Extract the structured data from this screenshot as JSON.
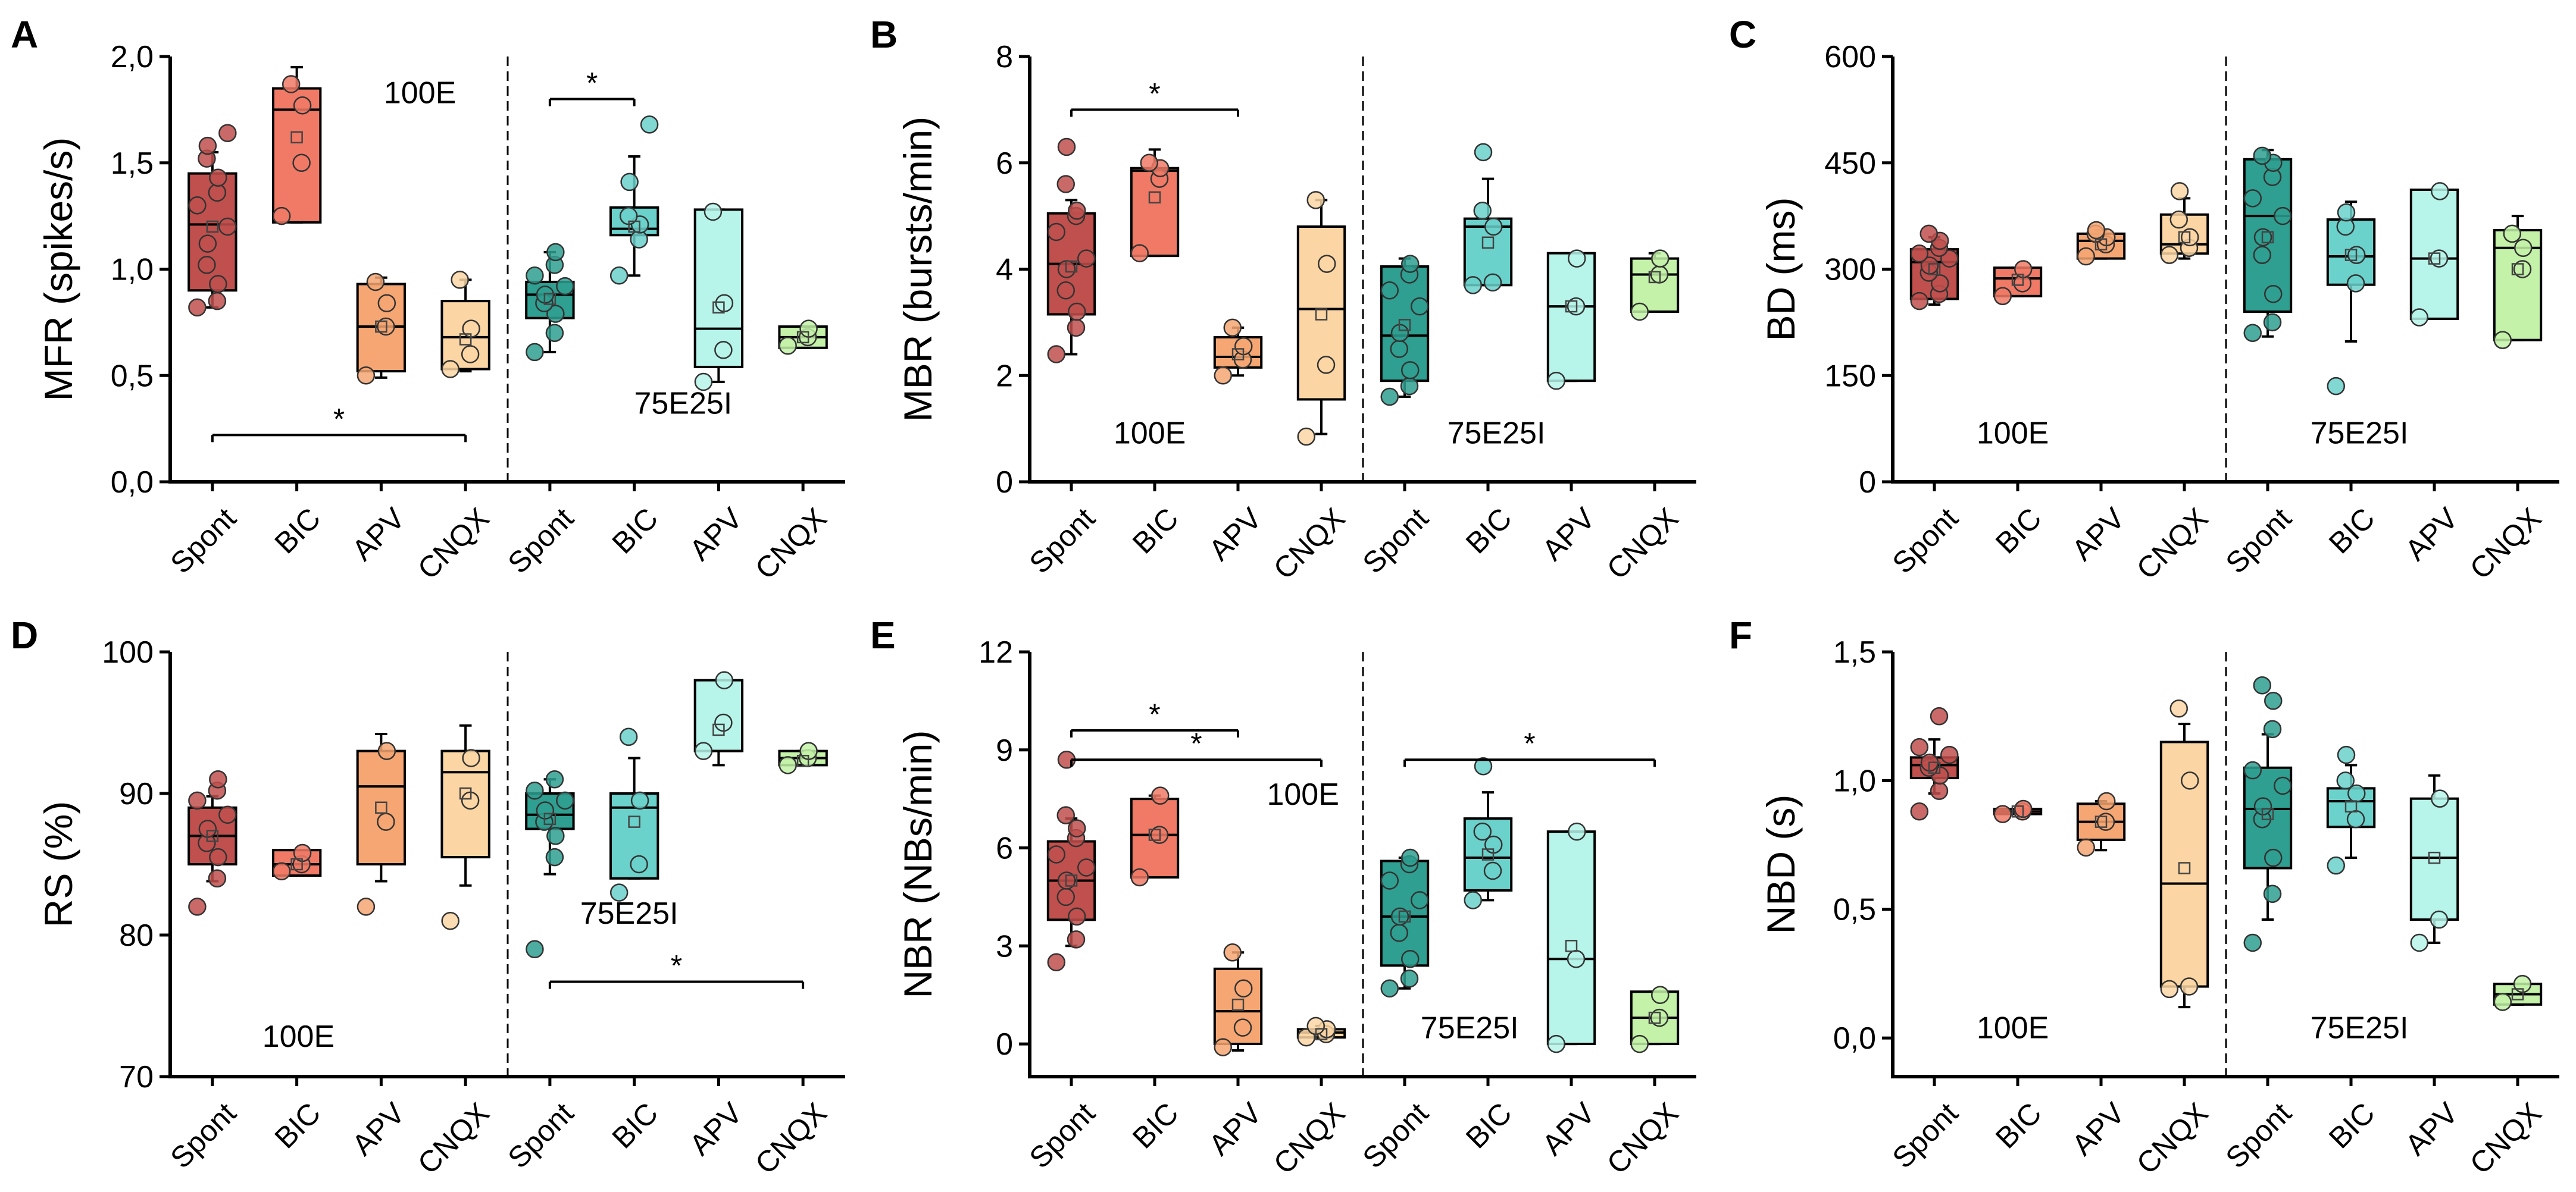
{
  "colors": {
    "Spont_100E": "#c0504d",
    "BIC_100E": "#f07a66",
    "APV_100E": "#f5a672",
    "CNQX_100E": "#fbd6a4",
    "Spont_75E25I": "#2e9f90",
    "BIC_75E25I": "#6bd1cb",
    "APV_75E25I": "#b7f4ea",
    "CNQX_75E25I": "#c3f2a8"
  },
  "chart_data": [
    {
      "panel": "A",
      "type": "box",
      "ylabel": "MFR (spikes/s)",
      "ylim": [
        0,
        2.0
      ],
      "yticks": [
        "0,0",
        "0,5",
        "1,0",
        "1,5",
        "2,0"
      ],
      "categories": [
        "Spont",
        "BIC",
        "APV",
        "CNQX",
        "Spont",
        "BIC",
        "APV",
        "CNQX"
      ],
      "group_labels": [
        "100E",
        "75E25I"
      ],
      "boxes": [
        {
          "q1": 0.9,
          "median": 1.21,
          "q3": 1.45,
          "mean": 1.2,
          "lo": 0.82,
          "hi": 1.55,
          "pts": [
            0.82,
            0.85,
            0.93,
            1.02,
            1.12,
            1.2,
            1.3,
            1.36,
            1.43,
            1.52,
            1.58,
            1.64
          ]
        },
        {
          "q1": 1.22,
          "median": 1.75,
          "q3": 1.85,
          "mean": 1.62,
          "lo": 1.22,
          "hi": 1.95,
          "pts": [
            1.25,
            1.5,
            1.77,
            1.87
          ]
        },
        {
          "q1": 0.52,
          "median": 0.73,
          "q3": 0.93,
          "mean": 0.73,
          "lo": 0.49,
          "hi": 0.96,
          "pts": [
            0.5,
            0.73,
            0.84,
            0.94
          ]
        },
        {
          "q1": 0.53,
          "median": 0.68,
          "q3": 0.85,
          "mean": 0.67,
          "lo": 0.52,
          "hi": 0.95,
          "pts": [
            0.53,
            0.6,
            0.72,
            0.95
          ]
        },
        {
          "q1": 0.77,
          "median": 0.88,
          "q3": 0.94,
          "mean": 0.86,
          "lo": 0.61,
          "hi": 1.08,
          "pts": [
            0.61,
            0.7,
            0.79,
            0.84,
            0.88,
            0.92,
            0.97,
            1.02,
            1.08
          ]
        },
        {
          "q1": 1.16,
          "median": 1.19,
          "q3": 1.29,
          "mean": 1.2,
          "lo": 0.97,
          "hi": 1.53,
          "pts": [
            0.97,
            1.14,
            1.21,
            1.25,
            1.41,
            1.68
          ]
        },
        {
          "q1": 0.54,
          "median": 0.72,
          "q3": 1.28,
          "mean": 0.82,
          "lo": 0.47,
          "hi": 1.28,
          "pts": [
            0.47,
            0.62,
            0.84,
            1.27
          ]
        },
        {
          "q1": 0.63,
          "median": 0.68,
          "q3": 0.73,
          "mean": 0.68,
          "lo": 0.63,
          "hi": 0.73,
          "pts": [
            0.64,
            0.68,
            0.72
          ]
        }
      ],
      "sig": [
        {
          "from": 0,
          "to": 3,
          "y": 0.22,
          "label": "*"
        },
        {
          "from": 4,
          "to": 5,
          "y": 1.8,
          "label": "*"
        }
      ]
    },
    {
      "panel": "B",
      "type": "box",
      "ylabel": "MBR (bursts/min)",
      "ylim": [
        0,
        8
      ],
      "yticks": [
        "0",
        "2",
        "4",
        "6",
        "8"
      ],
      "categories": [
        "Spont",
        "BIC",
        "APV",
        "CNQX",
        "Spont",
        "BIC",
        "APV",
        "CNQX"
      ],
      "group_labels": [
        "100E",
        "75E25I"
      ],
      "boxes": [
        {
          "q1": 3.15,
          "median": 4.1,
          "q3": 5.05,
          "mean": 4.05,
          "lo": 2.4,
          "hi": 5.3,
          "pts": [
            2.4,
            2.9,
            3.2,
            3.6,
            4.0,
            4.2,
            4.7,
            5.0,
            5.1,
            5.6,
            6.3
          ]
        },
        {
          "q1": 4.25,
          "median": 5.85,
          "q3": 5.9,
          "mean": 5.35,
          "lo": 4.25,
          "hi": 6.25,
          "pts": [
            4.3,
            5.7,
            5.9,
            6.0
          ]
        },
        {
          "q1": 2.15,
          "median": 2.35,
          "q3": 2.72,
          "mean": 2.4,
          "lo": 2.0,
          "hi": 2.9,
          "pts": [
            2.0,
            2.3,
            2.55,
            2.9
          ]
        },
        {
          "q1": 1.55,
          "median": 3.25,
          "q3": 4.8,
          "mean": 3.15,
          "lo": 0.9,
          "hi": 5.3,
          "pts": [
            0.85,
            2.2,
            4.1,
            5.3
          ]
        },
        {
          "q1": 1.9,
          "median": 2.75,
          "q3": 4.05,
          "mean": 2.95,
          "lo": 1.6,
          "hi": 4.2,
          "pts": [
            1.6,
            1.8,
            2.1,
            2.5,
            2.8,
            3.3,
            3.6,
            3.9,
            4.1
          ]
        },
        {
          "q1": 3.7,
          "median": 4.8,
          "q3": 4.95,
          "mean": 4.5,
          "lo": 3.7,
          "hi": 5.7,
          "pts": [
            3.7,
            3.75,
            4.8,
            5.1,
            6.2
          ]
        },
        {
          "q1": 1.9,
          "median": 3.3,
          "q3": 4.3,
          "mean": 3.3,
          "lo": 1.9,
          "hi": 4.3,
          "pts": [
            1.9,
            3.3,
            4.2
          ]
        },
        {
          "q1": 3.2,
          "median": 3.9,
          "q3": 4.2,
          "mean": 3.85,
          "lo": 3.2,
          "hi": 4.3,
          "pts": [
            3.2,
            3.9,
            4.2
          ]
        }
      ],
      "sig": [
        {
          "from": 0,
          "to": 2,
          "y": 7.0,
          "label": "*"
        }
      ]
    },
    {
      "panel": "C",
      "type": "box",
      "ylabel": "BD (ms)",
      "ylim": [
        0,
        600
      ],
      "yticks": [
        "0",
        "150",
        "300",
        "450",
        "600"
      ],
      "categories": [
        "Spont",
        "BIC",
        "APV",
        "CNQX",
        "Spont",
        "BIC",
        "APV",
        "CNQX"
      ],
      "group_labels": [
        "100E",
        "75E25I"
      ],
      "boxes": [
        {
          "q1": 258,
          "median": 310,
          "q3": 328,
          "mean": 300,
          "lo": 250,
          "hi": 345,
          "pts": [
            255,
            265,
            280,
            295,
            305,
            315,
            322,
            330,
            340,
            350
          ]
        },
        {
          "q1": 262,
          "median": 287,
          "q3": 302,
          "mean": 285,
          "lo": 262,
          "hi": 302,
          "pts": [
            262,
            280,
            300
          ]
        },
        {
          "q1": 315,
          "median": 340,
          "q3": 350,
          "mean": 335,
          "lo": 315,
          "hi": 355,
          "pts": [
            318,
            335,
            345,
            350,
            355
          ]
        },
        {
          "q1": 322,
          "median": 335,
          "q3": 377,
          "mean": 345,
          "lo": 315,
          "hi": 400,
          "pts": [
            320,
            330,
            345,
            370,
            410
          ]
        },
        {
          "q1": 240,
          "median": 375,
          "q3": 455,
          "mean": 345,
          "lo": 205,
          "hi": 468,
          "pts": [
            210,
            225,
            265,
            320,
            345,
            375,
            400,
            430,
            450,
            460
          ]
        },
        {
          "q1": 278,
          "median": 318,
          "q3": 370,
          "mean": 320,
          "lo": 198,
          "hi": 395,
          "pts": [
            135,
            280,
            320,
            360,
            380
          ]
        },
        {
          "q1": 230,
          "median": 315,
          "q3": 412,
          "mean": 315,
          "lo": 230,
          "hi": 412,
          "pts": [
            232,
            315,
            410
          ]
        },
        {
          "q1": 200,
          "median": 330,
          "q3": 355,
          "mean": 300,
          "lo": 200,
          "hi": 375,
          "pts": [
            200,
            300,
            330,
            350
          ]
        }
      ],
      "sig": []
    },
    {
      "panel": "D",
      "type": "box",
      "ylabel": "RS (%)",
      "ylim": [
        70,
        100
      ],
      "yticks": [
        "70",
        "80",
        "90",
        "100"
      ],
      "categories": [
        "Spont",
        "BIC",
        "APV",
        "CNQX",
        "Spont",
        "BIC",
        "APV",
        "CNQX"
      ],
      "group_labels": [
        "100E",
        "75E25I"
      ],
      "boxes": [
        {
          "q1": 85.0,
          "median": 87.0,
          "q3": 89.0,
          "mean": 87.0,
          "lo": 83.8,
          "hi": 89.8,
          "pts": [
            82.0,
            84.0,
            85.5,
            86.5,
            87.5,
            88.5,
            89.5,
            90.2,
            91.0
          ]
        },
        {
          "q1": 84.2,
          "median": 85.0,
          "q3": 86.0,
          "mean": 85.0,
          "lo": 84.2,
          "hi": 86.0,
          "pts": [
            84.5,
            85.0,
            85.8
          ]
        },
        {
          "q1": 85.0,
          "median": 90.5,
          "q3": 93.0,
          "mean": 89.0,
          "lo": 83.8,
          "hi": 94.2,
          "pts": [
            82.0,
            88.0,
            93.0
          ]
        },
        {
          "q1": 85.5,
          "median": 91.5,
          "q3": 93.0,
          "mean": 90.0,
          "lo": 83.5,
          "hi": 94.8,
          "pts": [
            81.0,
            89.5,
            92.5
          ]
        },
        {
          "q1": 87.5,
          "median": 88.5,
          "q3": 90.0,
          "mean": 88.2,
          "lo": 84.3,
          "hi": 91.0,
          "pts": [
            79.0,
            85.5,
            87.0,
            88.0,
            88.8,
            89.5,
            90.2,
            91.0
          ]
        },
        {
          "q1": 84.0,
          "median": 89.0,
          "q3": 90.0,
          "mean": 88.0,
          "lo": 84.0,
          "hi": 92.5,
          "pts": [
            83.0,
            85.0,
            89.5,
            94.0
          ]
        },
        {
          "q1": 93.0,
          "median": 93.0,
          "q3": 98.0,
          "mean": 94.5,
          "lo": 92.0,
          "hi": 98.0,
          "pts": [
            93.0,
            95.0,
            98.0
          ]
        },
        {
          "q1": 92.0,
          "median": 92.5,
          "q3": 93.0,
          "mean": 92.3,
          "lo": 92.0,
          "hi": 93.0,
          "pts": [
            92.0,
            92.5,
            93.0
          ]
        }
      ],
      "sig": [
        {
          "from": 4,
          "to": 7,
          "y": 76.7,
          "label": "*"
        }
      ]
    },
    {
      "panel": "E",
      "type": "box",
      "ylabel": "NBR (NBs/min)",
      "ylim": [
        -1,
        12
      ],
      "yticks": [
        "0",
        "3",
        "6",
        "9",
        "12"
      ],
      "ytick_values": [
        0,
        3,
        6,
        9,
        12
      ],
      "categories": [
        "Spont",
        "BIC",
        "APV",
        "CNQX",
        "Spont",
        "BIC",
        "APV",
        "CNQX"
      ],
      "group_labels": [
        "100E",
        "75E25I"
      ],
      "boxes": [
        {
          "q1": 3.8,
          "median": 5.0,
          "q3": 6.2,
          "mean": 5.0,
          "lo": 3.0,
          "hi": 6.9,
          "pts": [
            2.5,
            3.2,
            3.9,
            4.5,
            5.0,
            5.4,
            5.8,
            6.3,
            6.6,
            7.0,
            8.7
          ]
        },
        {
          "q1": 5.1,
          "median": 6.4,
          "q3": 7.5,
          "mean": 6.4,
          "lo": 5.1,
          "hi": 7.6,
          "pts": [
            5.1,
            6.4,
            7.6
          ]
        },
        {
          "q1": 0.0,
          "median": 1.0,
          "q3": 2.3,
          "mean": 1.2,
          "lo": -0.2,
          "hi": 2.8,
          "pts": [
            -0.1,
            0.5,
            1.7,
            2.8
          ]
        },
        {
          "q1": 0.2,
          "median": 0.35,
          "q3": 0.45,
          "mean": 0.3,
          "lo": 0.15,
          "hi": 0.55,
          "pts": [
            0.2,
            0.3,
            0.45,
            0.55
          ]
        },
        {
          "q1": 2.4,
          "median": 3.9,
          "q3": 5.6,
          "mean": 3.9,
          "lo": 1.7,
          "hi": 5.7,
          "pts": [
            1.7,
            2.0,
            2.6,
            3.4,
            3.9,
            4.4,
            5.0,
            5.5,
            5.7
          ]
        },
        {
          "q1": 4.7,
          "median": 5.7,
          "q3": 6.9,
          "mean": 5.8,
          "lo": 4.4,
          "hi": 7.7,
          "pts": [
            4.4,
            5.3,
            6.1,
            6.5,
            8.5
          ]
        },
        {
          "q1": 0.0,
          "median": 2.6,
          "q3": 6.5,
          "mean": 3.0,
          "lo": 0.0,
          "hi": 6.5,
          "pts": [
            0.0,
            2.6,
            6.5
          ]
        },
        {
          "q1": 0.0,
          "median": 0.8,
          "q3": 1.6,
          "mean": 0.8,
          "lo": 0.0,
          "hi": 1.6,
          "pts": [
            0.0,
            0.8,
            1.5
          ]
        }
      ],
      "sig": [
        {
          "from": 0,
          "to": 2,
          "y": 9.6,
          "label": "*"
        },
        {
          "from": 0,
          "to": 3,
          "y": 8.7,
          "label": "*"
        },
        {
          "from": 4,
          "to": 7,
          "y": 8.7,
          "label": "*"
        }
      ]
    },
    {
      "panel": "F",
      "type": "box",
      "ylabel": "NBD (s)",
      "ylim": [
        -0.15,
        1.5
      ],
      "yticks": [
        "0,0",
        "0,5",
        "1,0",
        "1,5"
      ],
      "ytick_values": [
        0,
        0.5,
        1.0,
        1.5
      ],
      "categories": [
        "Spont",
        "BIC",
        "APV",
        "CNQX",
        "Spont",
        "BIC",
        "APV",
        "CNQX"
      ],
      "group_labels": [
        "100E",
        "75E25I"
      ],
      "boxes": [
        {
          "q1": 1.01,
          "median": 1.06,
          "q3": 1.09,
          "mean": 1.05,
          "lo": 0.95,
          "hi": 1.16,
          "pts": [
            0.88,
            0.96,
            1.02,
            1.05,
            1.07,
            1.1,
            1.13,
            1.25
          ]
        },
        {
          "q1": 0.87,
          "median": 0.88,
          "q3": 0.89,
          "mean": 0.88,
          "lo": 0.87,
          "hi": 0.89,
          "pts": [
            0.87,
            0.88,
            0.89
          ]
        },
        {
          "q1": 0.77,
          "median": 0.84,
          "q3": 0.91,
          "mean": 0.84,
          "lo": 0.73,
          "hi": 0.92,
          "pts": [
            0.74,
            0.84,
            0.92
          ]
        },
        {
          "q1": 0.2,
          "median": 0.6,
          "q3": 1.15,
          "mean": 0.66,
          "lo": 0.12,
          "hi": 1.22,
          "pts": [
            0.19,
            0.2,
            1.0,
            1.28
          ]
        },
        {
          "q1": 0.66,
          "median": 0.89,
          "q3": 1.05,
          "mean": 0.87,
          "lo": 0.46,
          "hi": 1.18,
          "pts": [
            0.37,
            0.56,
            0.7,
            0.85,
            0.9,
            0.98,
            1.04,
            1.2,
            1.31,
            1.37
          ]
        },
        {
          "q1": 0.82,
          "median": 0.92,
          "q3": 0.97,
          "mean": 0.9,
          "lo": 0.7,
          "hi": 1.06,
          "pts": [
            0.67,
            0.85,
            0.95,
            1.0,
            1.1
          ]
        },
        {
          "q1": 0.46,
          "median": 0.7,
          "q3": 0.93,
          "mean": 0.7,
          "lo": 0.37,
          "hi": 1.02,
          "pts": [
            0.37,
            0.46,
            0.93
          ]
        },
        {
          "q1": 0.13,
          "median": 0.17,
          "q3": 0.21,
          "mean": 0.17,
          "lo": 0.13,
          "hi": 0.21,
          "pts": [
            0.14,
            0.21
          ]
        }
      ],
      "sig": []
    }
  ]
}
